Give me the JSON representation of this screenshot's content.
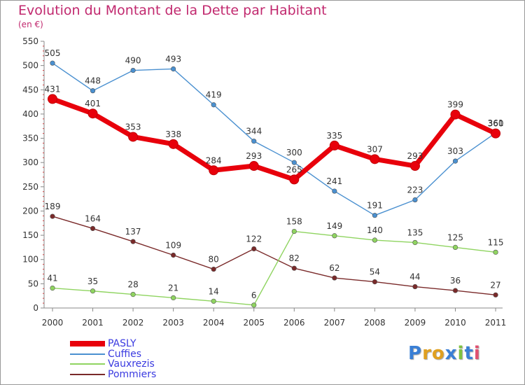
{
  "title": "Evolution du Montant de la Dette par Habitant",
  "subtitle": "(en €)",
  "logo": {
    "text": "Proxiti",
    "colors": [
      "#3a7fd5",
      "#e0a020",
      "#e0a020",
      "#3a7fd5",
      "#7fc241",
      "#3a7fd5",
      "#e05070"
    ]
  },
  "chart_data": {
    "type": "line",
    "x": [
      "2000",
      "2001",
      "2002",
      "2003",
      "2004",
      "2005",
      "2006",
      "2007",
      "2008",
      "2009",
      "2010",
      "2011"
    ],
    "ylim": [
      0,
      550
    ],
    "yticks": [
      "0",
      "50",
      "100",
      "150",
      "200",
      "250",
      "300",
      "350",
      "400",
      "450",
      "500",
      "550"
    ],
    "grid": false,
    "legend_position": "bottom-left",
    "series": [
      {
        "name": "PASLY",
        "color": "#e8000b",
        "values": [
          431,
          401,
          353,
          338,
          284,
          293,
          265,
          335,
          307,
          293,
          399,
          360
        ],
        "labels": [
          "431",
          "401",
          "353",
          "338",
          "284",
          "293",
          "265",
          "335",
          "307",
          "293",
          "399",
          "360"
        ]
      },
      {
        "name": "Cuffies",
        "color": "#4a90d0",
        "values": [
          505,
          448,
          490,
          493,
          419,
          344,
          300,
          241,
          191,
          223,
          303,
          361
        ],
        "labels": [
          "505",
          "448",
          "490",
          "493",
          "419",
          "344",
          "300",
          "241",
          "191",
          "223",
          "303",
          "361"
        ]
      },
      {
        "name": "Vauxrezis",
        "color": "#8fd460",
        "values": [
          41,
          35,
          28,
          21,
          14,
          6,
          158,
          149,
          140,
          135,
          125,
          115
        ],
        "labels": [
          "41",
          "35",
          "28",
          "21",
          "14",
          "6",
          "158",
          "149",
          "140",
          "135",
          "125",
          "115"
        ]
      },
      {
        "name": "Pommiers",
        "color": "#7a2a2a",
        "values": [
          189,
          164,
          137,
          109,
          80,
          122,
          82,
          62,
          54,
          44,
          36,
          27
        ],
        "labels": [
          "189",
          "164",
          "137",
          "109",
          "80",
          "122",
          "82",
          "62",
          "54",
          "44",
          "36",
          "27"
        ]
      }
    ]
  }
}
